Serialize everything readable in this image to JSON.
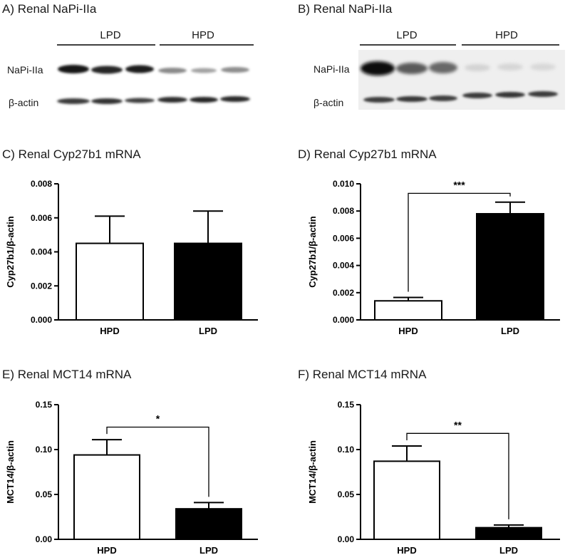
{
  "blots": [
    {
      "title": "A) Renal NaPi-IIa",
      "groups": [
        "LPD",
        "HPD"
      ],
      "rows": [
        "NaPi-IIa",
        "β-actin"
      ]
    },
    {
      "title": "B) Renal NaPi-IIa",
      "groups": [
        "LPD",
        "HPD"
      ],
      "rows": [
        "NaPi-IIa",
        "β-actin"
      ]
    }
  ],
  "colors": {
    "LPD": "#000000",
    "HPD": "#ffffff",
    "axis": "#000000"
  },
  "chart_data": [
    {
      "id": "C",
      "type": "bar",
      "title": "C) Renal Cyp27b1 mRNA",
      "ylabel": "Cyp27b1/β-actin",
      "categories": [
        "HPD",
        "LPD"
      ],
      "values": [
        0.0045,
        0.0045
      ],
      "errors": [
        0.0016,
        0.0019
      ],
      "ylim": [
        0,
        0.008
      ],
      "yticks": [
        "0.000",
        "0.002",
        "0.004",
        "0.006",
        "0.008"
      ],
      "significance": ""
    },
    {
      "id": "D",
      "type": "bar",
      "title": "D) Renal Cyp27b1 mRNA",
      "ylabel": "Cyp27b1/β-actin",
      "categories": [
        "HPD",
        "LPD"
      ],
      "values": [
        0.0014,
        0.0078
      ],
      "errors": [
        0.00025,
        0.00085
      ],
      "ylim": [
        0,
        0.01
      ],
      "yticks": [
        "0.000",
        "0.002",
        "0.004",
        "0.006",
        "0.008",
        "0.010"
      ],
      "significance": "***",
      "sig_level": 0.0093
    },
    {
      "id": "E",
      "type": "bar",
      "title": "E) Renal MCT14 mRNA",
      "ylabel": "MCT14/β-actin",
      "categories": [
        "HPD",
        "LPD"
      ],
      "values": [
        0.094,
        0.034
      ],
      "errors": [
        0.017,
        0.007
      ],
      "ylim": [
        0,
        0.15
      ],
      "yticks": [
        "0.00",
        "0.05",
        "0.10",
        "0.15"
      ],
      "significance": "*",
      "sig_level": 0.125
    },
    {
      "id": "F",
      "type": "bar",
      "title": "F) Renal MCT14 mRNA",
      "ylabel": "MCT14/β-actin",
      "categories": [
        "HPD",
        "LPD"
      ],
      "values": [
        0.087,
        0.013
      ],
      "errors": [
        0.017,
        0.003
      ],
      "ylim": [
        0,
        0.15
      ],
      "yticks": [
        "0.00",
        "0.05",
        "0.10",
        "0.15"
      ],
      "significance": "**",
      "sig_level": 0.118
    }
  ]
}
